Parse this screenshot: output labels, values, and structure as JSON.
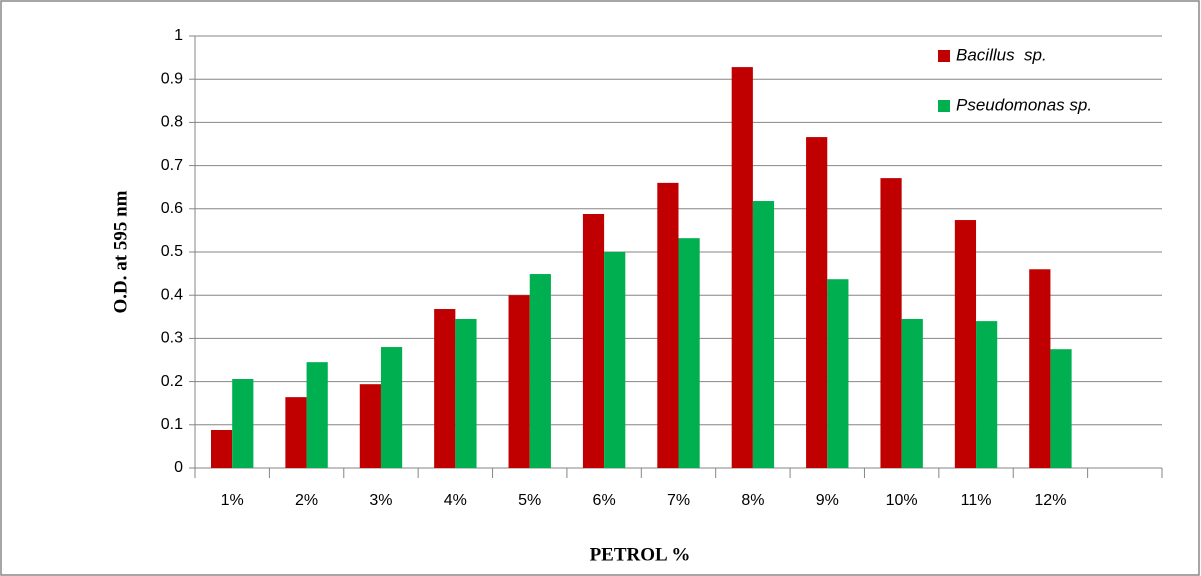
{
  "chart_data": {
    "type": "bar",
    "xlabel": "PETROL %",
    "ylabel": "O.D. at 595 nm",
    "categories": [
      "1%",
      "2%",
      "3%",
      "4%",
      "5%",
      "6%",
      "7%",
      "8%",
      "9%",
      "10%",
      "11%",
      "12%",
      null
    ],
    "series": [
      {
        "name": "Bacillus  sp.",
        "color": "#c00000",
        "values": [
          0.088,
          0.164,
          0.194,
          0.368,
          0.4,
          0.588,
          0.66,
          0.928,
          0.766,
          0.671,
          0.574,
          0.46,
          null
        ]
      },
      {
        "name": "Pseudomonas sp.",
        "color": "#00b050",
        "values": [
          0.206,
          0.245,
          0.28,
          0.345,
          0.449,
          0.5,
          0.532,
          0.618,
          0.437,
          0.345,
          0.34,
          0.275,
          null
        ]
      }
    ],
    "ylim": [
      0,
      1
    ],
    "yticks": [
      0,
      0.1,
      0.2,
      0.3,
      0.4,
      0.5,
      0.6,
      0.7,
      0.8,
      0.9,
      1
    ],
    "grid": true,
    "legend": "upper right"
  }
}
